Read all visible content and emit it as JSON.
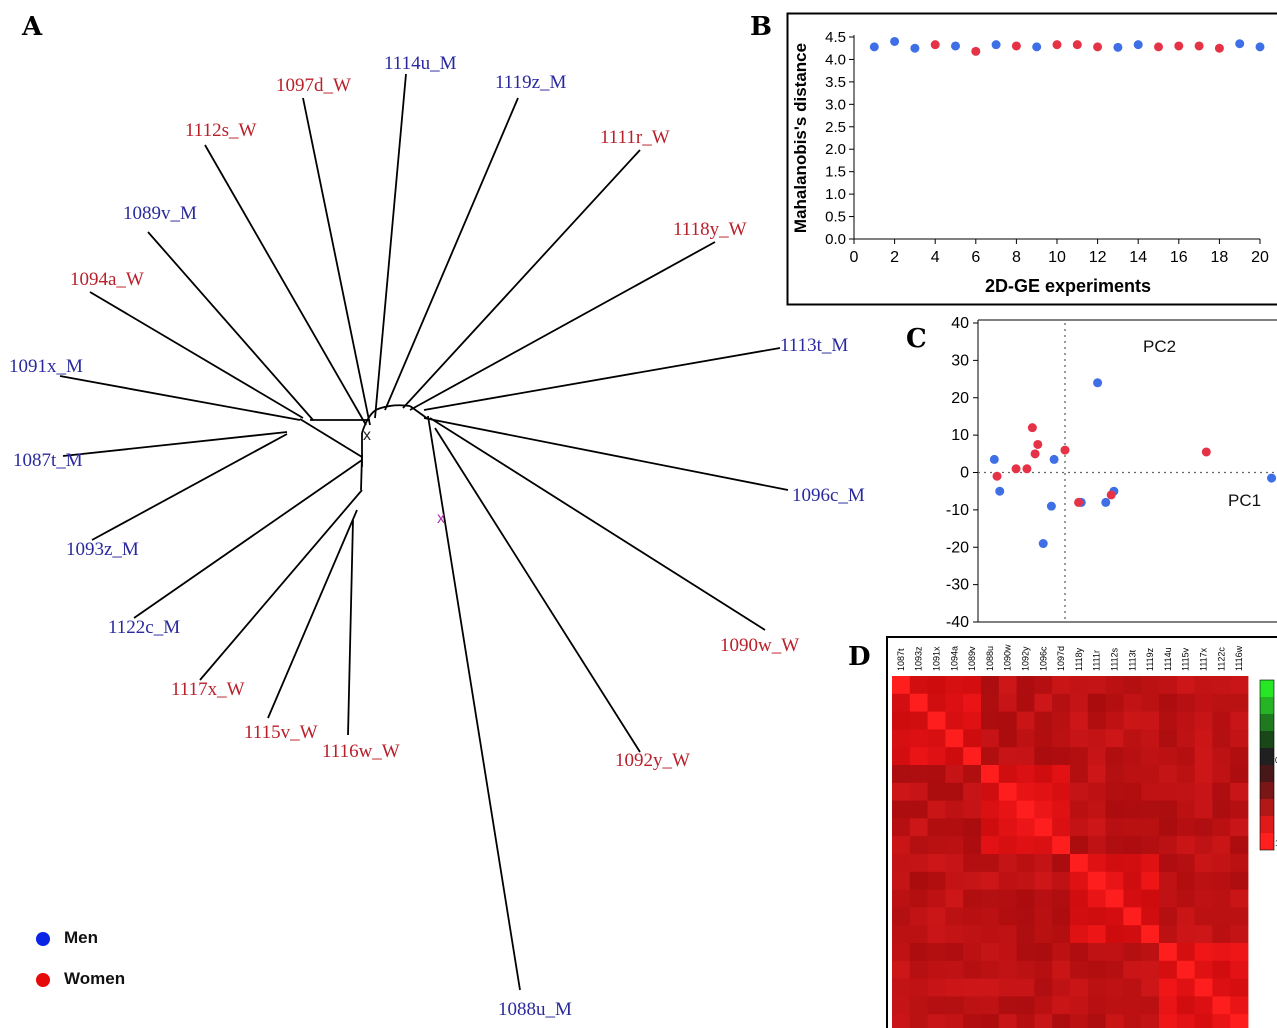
{
  "chart_data": [
    {
      "panel": "A",
      "type": "tree",
      "leaves": [
        {
          "label": "1114u_M",
          "group": "Men"
        },
        {
          "label": "1097d_W",
          "group": "Women"
        },
        {
          "label": "1119z_M",
          "group": "Men"
        },
        {
          "label": "1112s_W",
          "group": "Women"
        },
        {
          "label": "1111r_W",
          "group": "Women"
        },
        {
          "label": "1089v_M",
          "group": "Men"
        },
        {
          "label": "1118y_W",
          "group": "Women"
        },
        {
          "label": "1094a_W",
          "group": "Women"
        },
        {
          "label": "1113t_M",
          "group": "Men"
        },
        {
          "label": "1091x_M",
          "group": "Men"
        },
        {
          "label": "1087t_M",
          "group": "Men"
        },
        {
          "label": "1096c_M",
          "group": "Men"
        },
        {
          "label": "1093z_M",
          "group": "Men"
        },
        {
          "label": "1122c_M",
          "group": "Men"
        },
        {
          "label": "1090w_W",
          "group": "Women"
        },
        {
          "label": "1117x_W",
          "group": "Women"
        },
        {
          "label": "1115v_W",
          "group": "Women"
        },
        {
          "label": "1116w_W",
          "group": "Women"
        },
        {
          "label": "1092y_W",
          "group": "Women"
        },
        {
          "label": "1088u_M",
          "group": "Men"
        }
      ],
      "root_marker": "x",
      "legend": [
        {
          "label": "Men",
          "color": "#0a24e6"
        },
        {
          "label": "Women",
          "color": "#e60a0a"
        }
      ],
      "colors": {
        "Men": "#2a2a9e",
        "Women": "#b8202a"
      }
    },
    {
      "panel": "B",
      "type": "scatter",
      "xlabel": "2D-GE experiments",
      "ylabel": "Mahalanobis's distance",
      "xlim": [
        0,
        20
      ],
      "ylim": [
        0,
        4.5
      ],
      "xticks": [
        "0",
        "2",
        "4",
        "6",
        "8",
        "10",
        "12",
        "14",
        "16",
        "18",
        "20"
      ],
      "yticks": [
        "0.0",
        "0.5",
        "1.0",
        "1.5",
        "2.0",
        "2.5",
        "3.0",
        "3.5",
        "4.0",
        "4.5"
      ],
      "points": [
        {
          "x": 1,
          "y": 4.28,
          "g": "Men"
        },
        {
          "x": 2,
          "y": 4.4,
          "g": "Men"
        },
        {
          "x": 3,
          "y": 4.25,
          "g": "Men"
        },
        {
          "x": 4,
          "y": 4.33,
          "g": "Women"
        },
        {
          "x": 5,
          "y": 4.3,
          "g": "Men"
        },
        {
          "x": 6,
          "y": 4.18,
          "g": "Women"
        },
        {
          "x": 7,
          "y": 4.33,
          "g": "Men"
        },
        {
          "x": 8,
          "y": 4.3,
          "g": "Women"
        },
        {
          "x": 9,
          "y": 4.28,
          "g": "Men"
        },
        {
          "x": 10,
          "y": 4.33,
          "g": "Women"
        },
        {
          "x": 11,
          "y": 4.33,
          "g": "Women"
        },
        {
          "x": 12,
          "y": 4.28,
          "g": "Women"
        },
        {
          "x": 13,
          "y": 4.27,
          "g": "Men"
        },
        {
          "x": 14,
          "y": 4.33,
          "g": "Men"
        },
        {
          "x": 15,
          "y": 4.28,
          "g": "Women"
        },
        {
          "x": 16,
          "y": 4.3,
          "g": "Women"
        },
        {
          "x": 17,
          "y": 4.3,
          "g": "Women"
        },
        {
          "x": 18,
          "y": 4.25,
          "g": "Women"
        },
        {
          "x": 19,
          "y": 4.35,
          "g": "Men"
        },
        {
          "x": 20,
          "y": 4.28,
          "g": "Men"
        }
      ],
      "colors": {
        "Men": "#3f6fe6",
        "Women": "#e63246"
      }
    },
    {
      "panel": "C",
      "type": "scatter",
      "ylim": [
        -40,
        40
      ],
      "yticks": [
        "40",
        "30",
        "20",
        "10",
        "0",
        "-10",
        "-20",
        "-30",
        "-40"
      ],
      "axis_labels": {
        "pc1": "PC1",
        "pc2": "PC2"
      },
      "x_ref_line": 0,
      "y_ref_line": 0,
      "xlim": [
        -16,
        39
      ],
      "points": [
        {
          "x": 6,
          "y": 24,
          "g": "Men"
        },
        {
          "x": -13,
          "y": 3.5,
          "g": "Men"
        },
        {
          "x": -12,
          "y": -5,
          "g": "Men"
        },
        {
          "x": -2,
          "y": 3.5,
          "g": "Men"
        },
        {
          "x": -2.5,
          "y": -9,
          "g": "Men"
        },
        {
          "x": -4,
          "y": -19,
          "g": "Men"
        },
        {
          "x": 3,
          "y": -8,
          "g": "Men"
        },
        {
          "x": 7.5,
          "y": -8,
          "g": "Men"
        },
        {
          "x": 9,
          "y": -5,
          "g": "Men"
        },
        {
          "x": 38,
          "y": -1.5,
          "g": "Men"
        },
        {
          "x": -12.5,
          "y": -1,
          "g": "Women"
        },
        {
          "x": -9,
          "y": 1,
          "g": "Women"
        },
        {
          "x": -7,
          "y": 1,
          "g": "Women"
        },
        {
          "x": -6,
          "y": 12,
          "g": "Women"
        },
        {
          "x": -5,
          "y": 7.5,
          "g": "Women"
        },
        {
          "x": -5.5,
          "y": 5,
          "g": "Women"
        },
        {
          "x": 0,
          "y": 6,
          "g": "Women"
        },
        {
          "x": 2.5,
          "y": -8,
          "g": "Women"
        },
        {
          "x": 8.5,
          "y": -6,
          "g": "Women"
        },
        {
          "x": 26,
          "y": 5.5,
          "g": "Women"
        }
      ],
      "colors": {
        "Men": "#3f6fe6",
        "Women": "#e63246"
      }
    },
    {
      "panel": "D",
      "type": "heatmap",
      "labels": [
        "1087t",
        "1093z",
        "1091x",
        "1094a",
        "1089v",
        "1088u",
        "1090w",
        "1092y",
        "1096c",
        "1097d",
        "1118y",
        "1111r",
        "1112s",
        "1113t",
        "1119z",
        "1114u",
        "1115v",
        "1117x",
        "1122c",
        "1116w"
      ],
      "scale_ticks": [
        "0",
        "1"
      ],
      "scale_colors": [
        "#26e626",
        "#26b326",
        "#1f7a1f",
        "#184818",
        "#202020",
        "#481818",
        "#7a1616",
        "#b31818",
        "#e01a1a",
        "#ff1f1f"
      ]
    }
  ]
}
